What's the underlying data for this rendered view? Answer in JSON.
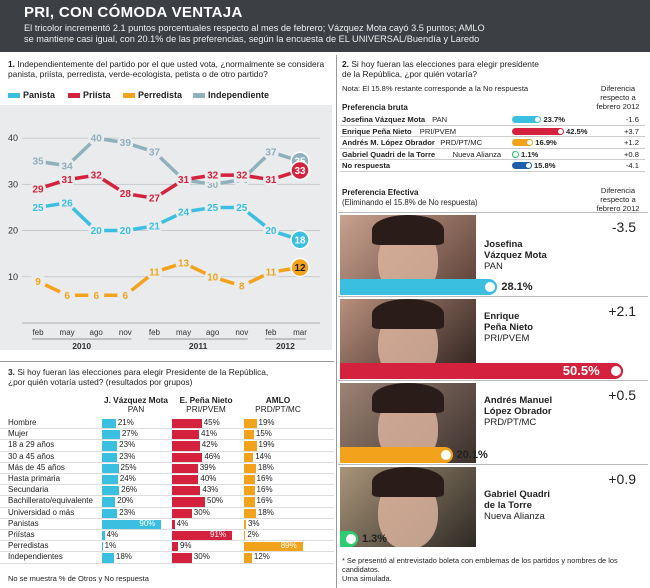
{
  "header": {
    "title": "PRI, CON CÓMODA VENTAJA",
    "subtitle_1": "El tricolor incrementó 2.1 puntos porcentuales respecto al mes de febrero; Vázquez Mota cayó 3.5 puntos; AMLO",
    "subtitle_2": "se mantiene casi igual, con 20.1% de las preferencias, según la encuesta de EL UNIVERSAL/Buendía y Laredo"
  },
  "q1": {
    "number": "1.",
    "text_1": "Independientemente del partido por el que usted vota, ¿normalmente se considera",
    "text_2": "panista, priísta, perredista, verde-ecologista, petista o de otro partido?"
  },
  "legend": [
    {
      "label": "Panista",
      "color": "#3bbfe0"
    },
    {
      "label": "Priísta",
      "color": "#d4213d"
    },
    {
      "label": "Perredista",
      "color": "#f2a31b"
    },
    {
      "label": "Independiente",
      "color": "#8fb0bd"
    }
  ],
  "chart_data": {
    "type": "line",
    "categories": [
      "feb",
      "may",
      "ago",
      "nov",
      "feb",
      "may",
      "ago",
      "nov",
      "feb",
      "mar"
    ],
    "year_labels": [
      "2010",
      "2011",
      "2012"
    ],
    "yticks": [
      "40",
      "30",
      "20",
      "10"
    ],
    "ylim": [
      0,
      45
    ],
    "series": [
      {
        "name": "Independiente",
        "color": "#8fb0bd",
        "values": [
          35,
          34,
          40,
          39,
          37,
          31,
          30,
          31,
          37,
          35
        ]
      },
      {
        "name": "Priísta",
        "color": "#d4213d",
        "values": [
          29,
          31,
          32,
          28,
          27,
          31,
          32,
          32,
          31,
          33
        ]
      },
      {
        "name": "Panista",
        "color": "#3bbfe0",
        "values": [
          25,
          26,
          20,
          20,
          21,
          24,
          25,
          25,
          20,
          18
        ]
      },
      {
        "name": "Perredista",
        "color": "#f2a31b",
        "values": [
          9,
          6,
          6,
          6,
          11,
          13,
          10,
          8,
          11,
          12
        ]
      }
    ]
  },
  "q2": {
    "number": "2.",
    "text_1": "Si hoy fueran las elecciones para elegir presidente",
    "text_2": "de la República, ¿por quién votaría?",
    "note": "Nota: El 15.8% restante corresponde a la No respuesta",
    "col_diff": "Diferencia respecto a febrero 2012",
    "bruta_title": "Preferencia bruta",
    "bruta": [
      {
        "name": "Josefina Vázquez Mota",
        "party": "PAN",
        "value": 23.7,
        "label": "23.7%",
        "color": "#3bbfe0",
        "diff": "-1.6"
      },
      {
        "name": "Enrique Peña Nieto",
        "party": "PRI/PVEM",
        "value": 42.5,
        "label": "42.5%",
        "color": "#d4213d",
        "diff": "+3.7"
      },
      {
        "name": "Andrés M. López Obrador",
        "party": "PRD/PT/MC",
        "value": 16.9,
        "label": "16.9%",
        "color": "#f2a31b",
        "diff": "+1.2"
      },
      {
        "name": "Gabriel Quadri de la Torre",
        "party": "Nueva Alianza",
        "value": 1.1,
        "label": "1.1%",
        "color": "#2ecc71",
        "diff": "+0.8"
      },
      {
        "name": "No respuesta",
        "party": "",
        "value": 15.8,
        "label": "15.8%",
        "color": "#1f5fa8",
        "diff": "-4.1"
      }
    ],
    "efectiva_title": "Preferencia Efectiva",
    "efectiva_sub": "(Eliminando el 15.8% de No respuesta)",
    "efectiva": [
      {
        "name_1": "Josefina",
        "name_2": "Vázquez Mota",
        "party": "PAN",
        "label": "28.1%",
        "value": 28.1,
        "color": "#3bbfe0",
        "diff": "-3.5"
      },
      {
        "name_1": "Enrique",
        "name_2": "Peña Nieto",
        "party": "PRI/PVEM",
        "label": "50.5%",
        "value": 50.5,
        "color": "#d4213d",
        "diff": "+2.1"
      },
      {
        "name_1": "Andrés Manuel",
        "name_2": "López Obrador",
        "party": "PRD/PT/MC",
        "label": "20.1%",
        "value": 20.1,
        "color": "#f2a31b",
        "diff": "+0.5"
      },
      {
        "name_1": "Gabriel Quadri",
        "name_2": "de la Torre",
        "party": "Nueva Alianza",
        "label": "1.3%",
        "value": 1.3,
        "color": "#2ecc71",
        "diff": "+0.9"
      }
    ],
    "footnote_1": "* Se presentó al entrevistado boleta con emblemas de los partidos y nombres de los candidatos.",
    "footnote_2": "Urna simulada."
  },
  "q3": {
    "number": "3.",
    "text_1": "Si hoy fueran las elecciones para elegir Presidente de la República,",
    "text_2": "¿por quién votaría usted?  (resultados por grupos)",
    "cols": [
      {
        "name": "J. Vázquez Mota",
        "party": "PAN",
        "color": "#3bbfe0"
      },
      {
        "name": "E. Peña Nieto",
        "party": "PRI/PVEM",
        "color": "#d4213d"
      },
      {
        "name": "AMLO",
        "party": "PRD/PT/MC",
        "color": "#f2a31b"
      }
    ],
    "rows": [
      {
        "label": "Hombre",
        "v": [
          21,
          45,
          19
        ]
      },
      {
        "label": "Mujer",
        "v": [
          27,
          41,
          15
        ]
      },
      {
        "label": "18 a 29 años",
        "v": [
          23,
          42,
          19
        ]
      },
      {
        "label": "30 a 45 años",
        "v": [
          23,
          46,
          14
        ]
      },
      {
        "label": "Más de 45 años",
        "v": [
          25,
          39,
          18
        ]
      },
      {
        "label": "Hasta primaria",
        "v": [
          24,
          40,
          16
        ]
      },
      {
        "label": "Secundaria",
        "v": [
          26,
          43,
          16
        ]
      },
      {
        "label": "Bachillerato/equivalente",
        "v": [
          20,
          50,
          16
        ]
      },
      {
        "label": "Universidad o más",
        "v": [
          23,
          30,
          18
        ]
      },
      {
        "label": "Panistas",
        "v": [
          90,
          4,
          3
        ]
      },
      {
        "label": "Priístas",
        "v": [
          4,
          91,
          2
        ]
      },
      {
        "label": "Perredistas",
        "v": [
          1,
          9,
          89
        ]
      },
      {
        "label": "Independientes",
        "v": [
          18,
          30,
          12
        ]
      }
    ],
    "footnote": "No se muestra % de Otros y No respuesta"
  }
}
